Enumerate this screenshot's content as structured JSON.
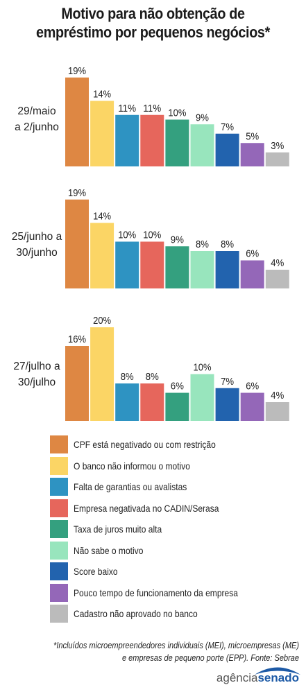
{
  "title_lines": [
    "Motivo para não obtenção de",
    "empréstimo por pequenos negócios*"
  ],
  "chart_data": {
    "type": "bar",
    "title": "Motivo para não obtenção de empréstimo por pequenos negócios*",
    "value_suffix": "%",
    "ylim": [
      0,
      20
    ],
    "categories": [
      "CPF está negativado ou com restrição",
      "O banco não informou o motivo",
      "Falta de garantias ou avalistas",
      "Empresa negativada no CADIN/Serasa",
      "Taxa de juros muito alta",
      "Não sabe o motivo",
      "Score baixo",
      "Pouco tempo de funcionamento da empresa",
      "Cadastro não aprovado no banco"
    ],
    "colors": [
      "#de8743",
      "#fbd565",
      "#2e93c2",
      "#e6665c",
      "#34a07f",
      "#98e5bd",
      "#2263ae",
      "#9467b8",
      "#bbbbbb"
    ],
    "groups": [
      {
        "label_lines": [
          "29/maio",
          "a 2/junho"
        ],
        "values": [
          19,
          14,
          11,
          11,
          10,
          9,
          7,
          5,
          3
        ]
      },
      {
        "label_lines": [
          "25/junho a",
          "30/junho"
        ],
        "values": [
          19,
          14,
          10,
          10,
          9,
          8,
          8,
          6,
          4
        ]
      },
      {
        "label_lines": [
          "27/julho a",
          "30/julho"
        ],
        "values": [
          16,
          20,
          8,
          8,
          6,
          10,
          7,
          6,
          4
        ]
      }
    ],
    "legend_position": "bottom"
  },
  "footnote_lines": [
    "*Incluídos microempreendedores individuais (MEI), microempresas (ME)",
    "e empresas de pequeno porte (EPP). Fonte: Sebrae"
  ],
  "logo": {
    "part1": "agência",
    "part2": "senado"
  }
}
